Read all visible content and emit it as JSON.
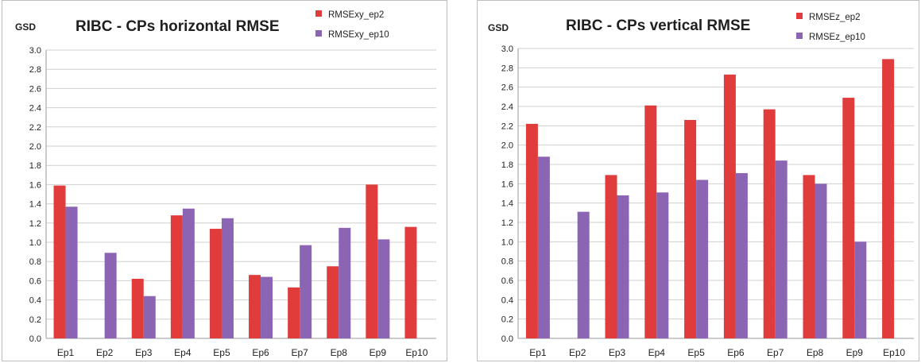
{
  "colors": {
    "ep2": "#e03c3c",
    "ep10": "#8c64b4",
    "grid": "#cfcfcf",
    "axis": "#9a9a9a"
  },
  "chart_data": [
    {
      "type": "bar",
      "title": "RIBC - CPs horizontal RMSE",
      "ylabel": "GSD",
      "ylim": [
        0,
        3.0
      ],
      "yticks": [
        "0.0",
        "0.2",
        "0.4",
        "0.6",
        "0.8",
        "1.0",
        "1.2",
        "1.4",
        "1.6",
        "1.8",
        "2.0",
        "2.2",
        "2.4",
        "2.6",
        "2.8",
        "3.0"
      ],
      "grid": true,
      "legend": "top-right",
      "categories": [
        "Ep1",
        "Ep2",
        "Ep3",
        "Ep4",
        "Ep5",
        "Ep6",
        "Ep7",
        "Ep8",
        "Ep9",
        "Ep10"
      ],
      "series": [
        {
          "name": "RMSExy_ep2",
          "color": "#e03c3c",
          "values": [
            1.59,
            null,
            0.62,
            1.28,
            1.14,
            0.66,
            0.53,
            0.75,
            1.6,
            1.16
          ]
        },
        {
          "name": "RMSExy_ep10",
          "color": "#8c64b4",
          "values": [
            1.37,
            0.89,
            0.44,
            1.35,
            1.25,
            0.64,
            0.97,
            1.15,
            1.03,
            null
          ]
        }
      ]
    },
    {
      "type": "bar",
      "title": "RIBC - CPs vertical RMSE",
      "ylabel": "GSD",
      "ylim": [
        0,
        3.0
      ],
      "yticks": [
        "0.0",
        "0.2",
        "0.4",
        "0.6",
        "0.8",
        "1.0",
        "1.2",
        "1.4",
        "1.6",
        "1.8",
        "2.0",
        "2.2",
        "2.4",
        "2.6",
        "2.8",
        "3.0"
      ],
      "grid": true,
      "legend": "top-right",
      "categories": [
        "Ep1",
        "Ep2",
        "Ep3",
        "Ep4",
        "Ep5",
        "Ep6",
        "Ep7",
        "Ep8",
        "Ep9",
        "Ep10"
      ],
      "series": [
        {
          "name": "RMSEz_ep2",
          "color": "#e03c3c",
          "values": [
            2.22,
            null,
            1.69,
            2.41,
            2.26,
            2.73,
            2.37,
            1.69,
            2.49,
            2.89
          ]
        },
        {
          "name": "RMSEz_ep10",
          "color": "#8c64b4",
          "values": [
            1.88,
            1.31,
            1.48,
            1.51,
            1.64,
            1.71,
            1.84,
            1.6,
            1.0,
            null
          ]
        }
      ]
    }
  ]
}
